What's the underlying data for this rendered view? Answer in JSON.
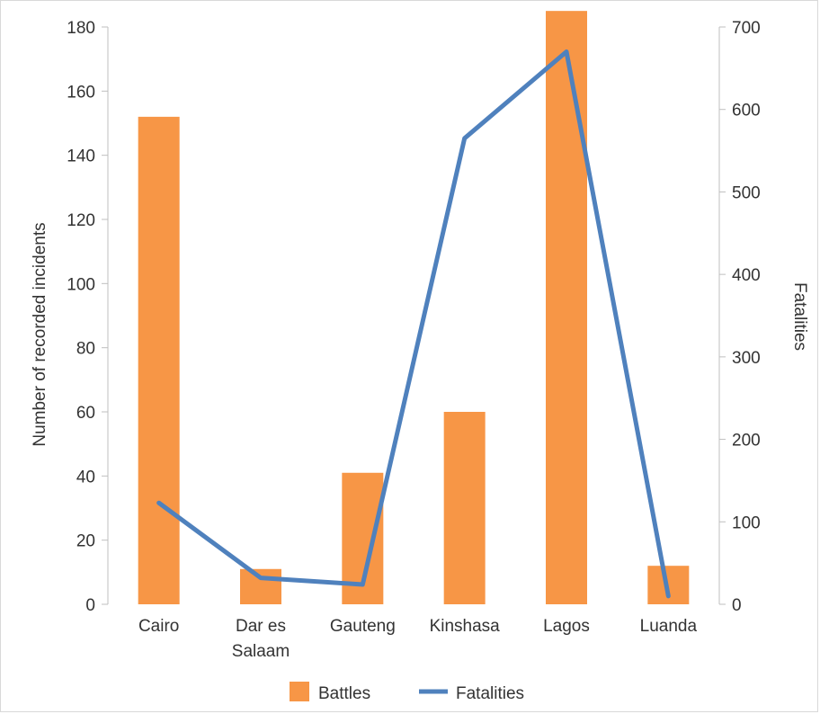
{
  "chart_data": {
    "type": "bar",
    "categories": [
      [
        "Cairo"
      ],
      [
        "Dar es",
        "Salaam"
      ],
      [
        "Gauteng"
      ],
      [
        "Kinshasa"
      ],
      [
        "Lagos"
      ],
      [
        "Luanda"
      ]
    ],
    "series": [
      {
        "name": "Battles",
        "type": "bar",
        "axis": "left",
        "color": "#f79646",
        "values": [
          152,
          11,
          41,
          60,
          185,
          12
        ]
      },
      {
        "name": "Fatalities",
        "type": "line",
        "axis": "right",
        "color": "#4f81bd",
        "values": [
          123,
          32,
          24,
          565,
          670,
          10
        ]
      }
    ],
    "ylabel_left": "Number of recorded incidents",
    "ylabel_right": "Fatalities",
    "ylim_left": [
      0,
      180
    ],
    "yticks_left": [
      0,
      20,
      40,
      60,
      80,
      100,
      120,
      140,
      160,
      180
    ],
    "ylim_right": [
      0,
      700
    ],
    "yticks_right": [
      0,
      100,
      200,
      300,
      400,
      500,
      600,
      700
    ],
    "grid": false,
    "legend": "bottom"
  }
}
